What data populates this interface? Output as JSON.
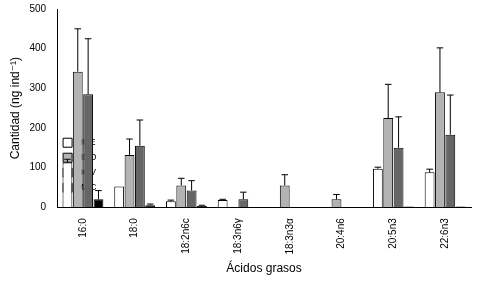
{
  "chart_data": {
    "type": "bar",
    "x_label": "Ácidos grasos",
    "y_label": "Cantidad (ng ind⁻¹)",
    "categories": [
      "16:0",
      "18:0",
      "18:2n6c",
      "18:3n6γ",
      "18:3n3α",
      "20:4n6",
      "20:5n3",
      "22:6n3"
    ],
    "series": [
      {
        "name": "HUE",
        "color": "#ffffff",
        "values": [
          113,
          52,
          15,
          18,
          0,
          0,
          97,
          88
        ],
        "errors": [
          8,
          0,
          3,
          2,
          0,
          0,
          4,
          8
        ]
      },
      {
        "name": "HNO",
        "color": "#b3b3b3",
        "values": [
          342,
          132,
          55,
          0,
          55,
          20,
          225,
          290
        ],
        "errors": [
          108,
          40,
          18,
          0,
          27,
          12,
          85,
          112
        ]
      },
      {
        "name": "HOV",
        "color": "#666666",
        "values": [
          285,
          155,
          42,
          20,
          0,
          0,
          150,
          183
        ],
        "errors": [
          140,
          65,
          25,
          18,
          0,
          0,
          78,
          100
        ]
      },
      {
        "name": "MAC",
        "color": "#000000",
        "values": [
          20,
          5,
          3,
          0,
          0,
          0,
          2,
          2
        ],
        "errors": [
          22,
          3,
          2,
          0,
          0,
          0,
          0,
          0
        ]
      }
    ],
    "ylim": [
      0,
      500
    ],
    "yticks": [
      0,
      100,
      200,
      300,
      400,
      500
    ],
    "grid": false,
    "legend": "top-right"
  }
}
